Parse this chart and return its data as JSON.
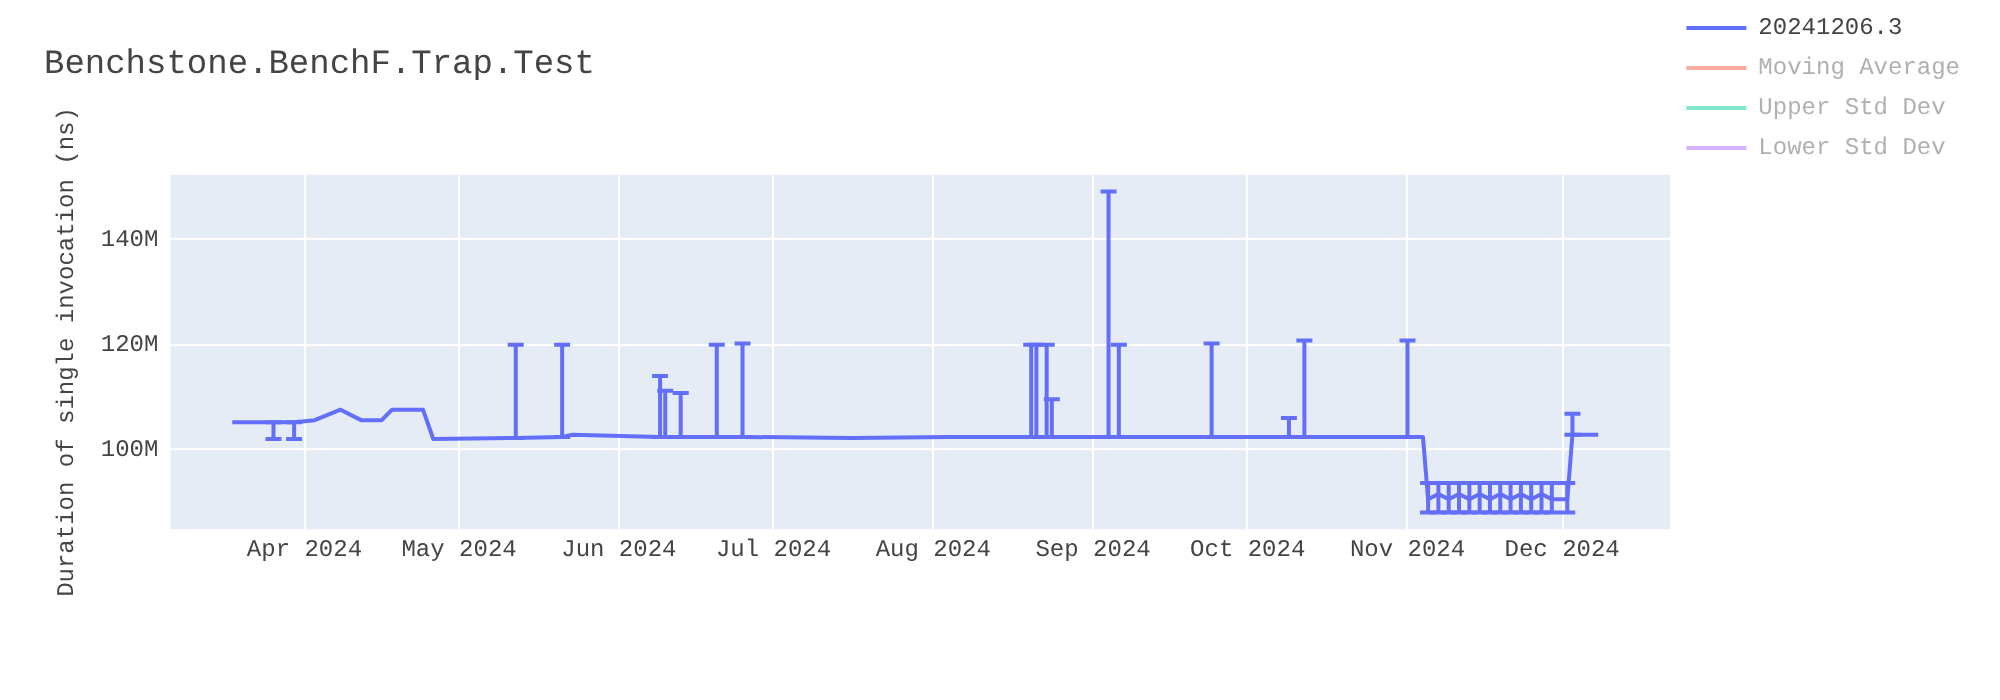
{
  "chart_data": {
    "type": "line",
    "title": "Benchstone.BenchF.Trap.Test",
    "ylabel": "Duration of single invocation (ns)",
    "xlim": [
      "2024-03-06",
      "2024-12-22"
    ],
    "xticks": [
      {
        "value": "2024-04-01",
        "label": "Apr 2024"
      },
      {
        "value": "2024-05-01",
        "label": "May 2024"
      },
      {
        "value": "2024-06-01",
        "label": "Jun 2024"
      },
      {
        "value": "2024-07-01",
        "label": "Jul 2024"
      },
      {
        "value": "2024-08-01",
        "label": "Aug 2024"
      },
      {
        "value": "2024-09-01",
        "label": "Sep 2024"
      },
      {
        "value": "2024-10-01",
        "label": "Oct 2024"
      },
      {
        "value": "2024-11-01",
        "label": "Nov 2024"
      },
      {
        "value": "2024-12-01",
        "label": "Dec 2024"
      }
    ],
    "ylim": [
      84800000,
      152400000
    ],
    "yticks": [
      {
        "value": 100000000,
        "label": "100M"
      },
      {
        "value": 120000000,
        "label": "120M"
      },
      {
        "value": 140000000,
        "label": "140M"
      }
    ],
    "grid": true,
    "legend": "right",
    "marker": "none",
    "line_style": "solid",
    "x": [
      "2024-03-18",
      "2024-03-26",
      "2024-03-30",
      "2024-04-03",
      "2024-04-08",
      "2024-04-12",
      "2024-04-16",
      "2024-04-18",
      "2024-04-24",
      "2024-04-26",
      "2024-05-12",
      "2024-05-21",
      "2024-05-23",
      "2024-06-09",
      "2024-06-10",
      "2024-06-13",
      "2024-06-20",
      "2024-06-25",
      "2024-07-16",
      "2024-08-04",
      "2024-08-20",
      "2024-08-21",
      "2024-08-23",
      "2024-08-24",
      "2024-09-04",
      "2024-09-06",
      "2024-09-24",
      "2024-10-09",
      "2024-10-12",
      "2024-11-01",
      "2024-11-04",
      "2024-11-05",
      "2024-11-07",
      "2024-11-09",
      "2024-11-11",
      "2024-11-13",
      "2024-11-15",
      "2024-11-17",
      "2024-11-19",
      "2024-11-21",
      "2024-11-23",
      "2024-11-25",
      "2024-11-27",
      "2024-11-29",
      "2024-12-02",
      "2024-12-03",
      "2024-12-08"
    ],
    "series": [
      {
        "name": "20241206.3",
        "color": "#636efa",
        "values": [
          105200000,
          105200000,
          105200000,
          105600000,
          107600000,
          105600000,
          105600000,
          107600000,
          107600000,
          102000000,
          102200000,
          102400000,
          102800000,
          102400000,
          102400000,
          102400000,
          102400000,
          102400000,
          102200000,
          102400000,
          102400000,
          102400000,
          102400000,
          102400000,
          102400000,
          102400000,
          102400000,
          102400000,
          102400000,
          102400000,
          102400000,
          90500000,
          91500000,
          90500000,
          91500000,
          90500000,
          91500000,
          90500000,
          91500000,
          90500000,
          91500000,
          90500000,
          91500000,
          90500000,
          90500000,
          102800000,
          102800000
        ],
        "errors": [
          null,
          [
            102000000,
            105200000
          ],
          [
            102000000,
            105200000
          ],
          null,
          null,
          null,
          null,
          null,
          null,
          null,
          [
            102200000,
            120000000
          ],
          [
            102400000,
            120000000
          ],
          null,
          [
            102400000,
            114000000
          ],
          [
            102400000,
            111200000
          ],
          [
            102400000,
            110800000
          ],
          [
            102400000,
            120000000
          ],
          [
            102400000,
            120200000
          ],
          null,
          null,
          [
            102400000,
            120000000
          ],
          [
            102400000,
            120000000
          ],
          [
            102400000,
            120000000
          ],
          [
            102400000,
            109600000
          ],
          [
            102400000,
            149200000
          ],
          [
            102400000,
            120000000
          ],
          [
            102400000,
            120200000
          ],
          [
            102400000,
            106000000
          ],
          [
            102400000,
            120800000
          ],
          [
            102400000,
            120800000
          ],
          null,
          [
            88000000,
            93600000
          ],
          [
            88000000,
            93600000
          ],
          [
            88000000,
            93600000
          ],
          [
            88000000,
            93600000
          ],
          [
            88000000,
            93600000
          ],
          [
            88000000,
            93600000
          ],
          [
            88000000,
            93600000
          ],
          [
            88000000,
            93600000
          ],
          [
            88000000,
            93600000
          ],
          [
            88000000,
            93600000
          ],
          [
            88000000,
            93600000
          ],
          [
            88000000,
            93600000
          ],
          [
            88000000,
            93600000
          ],
          [
            88000000,
            93600000
          ],
          [
            102800000,
            106800000
          ],
          null
        ]
      },
      {
        "name": "Moving Average",
        "color": "#f7aa9d",
        "values": [
          null,
          null,
          null,
          null,
          null,
          null,
          null,
          null,
          null,
          null,
          null,
          null,
          null,
          null,
          null,
          null,
          null,
          null,
          null,
          null,
          null,
          null,
          null,
          null,
          null,
          null,
          null,
          null,
          null,
          null,
          null,
          null,
          null,
          null,
          null,
          null,
          null,
          null,
          null,
          null,
          null,
          null,
          null,
          null,
          null,
          null,
          null
        ]
      },
      {
        "name": "Upper Std Dev",
        "color": "#80e6cb",
        "values": [
          null,
          null,
          null,
          null,
          null,
          null,
          null,
          null,
          null,
          null,
          null,
          null,
          null,
          null,
          null,
          null,
          null,
          null,
          null,
          null,
          null,
          null,
          null,
          null,
          null,
          null,
          null,
          null,
          null,
          null,
          null,
          null,
          null,
          null,
          null,
          null,
          null,
          null,
          null,
          null,
          null,
          null,
          null,
          null,
          null,
          null,
          null
        ]
      },
      {
        "name": "Lower Std Dev",
        "color": "#d5b1fd",
        "values": [
          null,
          null,
          null,
          null,
          null,
          null,
          null,
          null,
          null,
          null,
          null,
          null,
          null,
          null,
          null,
          null,
          null,
          null,
          null,
          null,
          null,
          null,
          null,
          null,
          null,
          null,
          null,
          null,
          null,
          null,
          null,
          null,
          null,
          null,
          null,
          null,
          null,
          null,
          null,
          null,
          null,
          null,
          null,
          null,
          null,
          null,
          null
        ]
      }
    ]
  }
}
